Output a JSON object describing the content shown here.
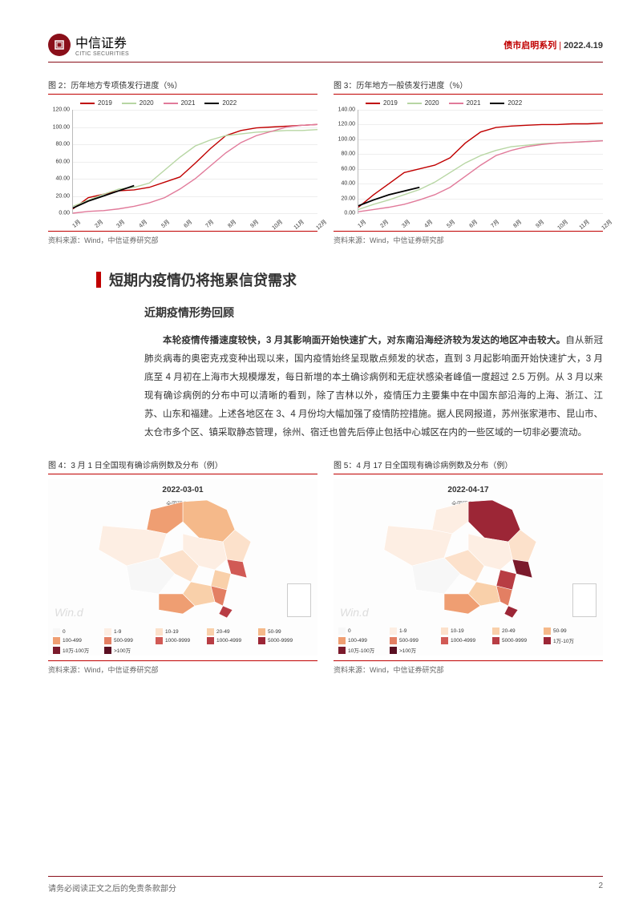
{
  "header": {
    "logo_main": "中信证券",
    "logo_sub": "CITIC SECURITIES",
    "series": "债市启明系列",
    "date": "2022.4.19"
  },
  "chart2": {
    "title": "图 2：历年地方专项债发行进度（%）",
    "source": "资料来源：Wind，中信证券研究部",
    "type": "line",
    "ylim": [
      0,
      120
    ],
    "ytick_step": 20,
    "x_labels": [
      "1月",
      "2月",
      "3月",
      "4月",
      "5月",
      "6月",
      "7月",
      "8月",
      "9月",
      "10月",
      "11月",
      "12月"
    ],
    "x_count": 17,
    "legend": [
      "2019",
      "2020",
      "2021",
      "2022"
    ],
    "colors": {
      "2019": "#c00000",
      "2020": "#b7d6a3",
      "2021": "#e17a9a",
      "2022": "#000000"
    },
    "series": {
      "2019": [
        5,
        18,
        22,
        26,
        27,
        30,
        36,
        42,
        58,
        75,
        90,
        96,
        99,
        100,
        101,
        102,
        103
      ],
      "2020": [
        8,
        15,
        22,
        28,
        30,
        35,
        50,
        65,
        78,
        85,
        90,
        92,
        94,
        95,
        96,
        96,
        97
      ],
      "2021": [
        0,
        2,
        3,
        5,
        8,
        12,
        18,
        28,
        40,
        55,
        70,
        82,
        90,
        95,
        100,
        102,
        103
      ],
      "2022": [
        6,
        14,
        20,
        26,
        32
      ]
    },
    "label_fontsize": 7
  },
  "chart3": {
    "title": "图 3：历年地方一般债发行进度（%）",
    "source": "资料来源：Wind，中信证券研究部",
    "type": "line",
    "ylim": [
      0,
      140
    ],
    "ytick_step": 20,
    "x_labels": [
      "1月",
      "2月",
      "3月",
      "4月",
      "5月",
      "6月",
      "7月",
      "8月",
      "9月",
      "10月",
      "11月",
      "12月"
    ],
    "x_count": 17,
    "legend": [
      "2019",
      "2020",
      "2021",
      "2022"
    ],
    "colors": {
      "2019": "#c00000",
      "2020": "#b7d6a3",
      "2021": "#e17a9a",
      "2022": "#000000"
    },
    "series": {
      "2019": [
        8,
        25,
        40,
        55,
        60,
        65,
        75,
        95,
        110,
        116,
        118,
        119,
        120,
        120,
        121,
        121,
        122
      ],
      "2020": [
        5,
        12,
        18,
        25,
        32,
        42,
        55,
        68,
        78,
        85,
        90,
        92,
        94,
        95,
        96,
        97,
        98
      ],
      "2021": [
        2,
        5,
        8,
        12,
        18,
        25,
        35,
        50,
        65,
        78,
        85,
        90,
        93,
        95,
        96,
        97,
        98
      ],
      "2022": [
        10,
        18,
        25,
        30,
        35
      ]
    },
    "label_fontsize": 7
  },
  "section": {
    "heading": "短期内疫情仍将拖累信贷需求",
    "subheading": "近期疫情形势回顾",
    "para_bold": "本轮疫情传播速度较快，3 月其影响面开始快速扩大，对东南沿海经济较为发达的地区冲击较大。",
    "para_rest": "自从新冠肺炎病毒的奥密克戎变种出现以来，国内疫情始终呈现散点频发的状态，直到 3 月起影响面开始快速扩大，3 月底至 4 月初在上海市大规模爆发，每日新增的本土确诊病例和无症状感染者峰值一度超过 2.5 万例。从 3 月以来现有确诊病例的分布中可以清晰的看到，除了吉林以外，疫情压力主要集中在中国东部沿海的上海、浙江、江苏、山东和福建。上述各地区在 3、4 月份均大幅加强了疫情防控措施。据人民网报道，苏州张家港市、昆山市、太仓市多个区、镇采取静态管理，徐州、宿迁也曾先后停止包括中心城区在内的一些区域的一切非必要流动。"
  },
  "map4": {
    "title": "图 4：3 月 1 日全国现有确诊病例数及分布（例）",
    "source": "资料来源：Wind，中信证券研究部",
    "date": "2022-03-01",
    "total_label": "全国现有确诊",
    "total_value": "2999",
    "watermark": "Win.d",
    "legend_bins": [
      "0",
      "1-9",
      "10-19",
      "20-49",
      "50-99",
      "100-499",
      "500-999",
      "1000-9999",
      "1000-4999",
      "5000-9999",
      "10万-100万",
      ">100万"
    ],
    "legend_colors": [
      "#f7f7f7",
      "#fdeee3",
      "#fce1cb",
      "#f9d0aa",
      "#f5b98a",
      "#ef9e72",
      "#e37f63",
      "#d15a55",
      "#b83d44",
      "#9c2636",
      "#7b1a2c",
      "#5a0f22"
    ]
  },
  "map5": {
    "title": "图 5：4 月 17 日全国现有确诊病例数及分布（例）",
    "source": "资料来源：Wind，中信证券研究部",
    "date": "2022-04-17",
    "total_label": "全国现有确诊",
    "total_value": "28987",
    "watermark": "Win.d",
    "legend_bins": [
      "0",
      "1-9",
      "10-19",
      "20-49",
      "50-99",
      "100-499",
      "500-999",
      "1000-4999",
      "5000-9999",
      "1万-10万",
      "10万-100万",
      ">100万"
    ],
    "legend_colors": [
      "#f7f7f7",
      "#fdeee3",
      "#fce1cb",
      "#f9d0aa",
      "#f5b98a",
      "#ef9e72",
      "#e37f63",
      "#d15a55",
      "#b83d44",
      "#9c2636",
      "#7b1a2c",
      "#5a0f22"
    ]
  },
  "footer": {
    "disclaimer": "请务必阅读正文之后的免责条款部分",
    "page": "2"
  }
}
